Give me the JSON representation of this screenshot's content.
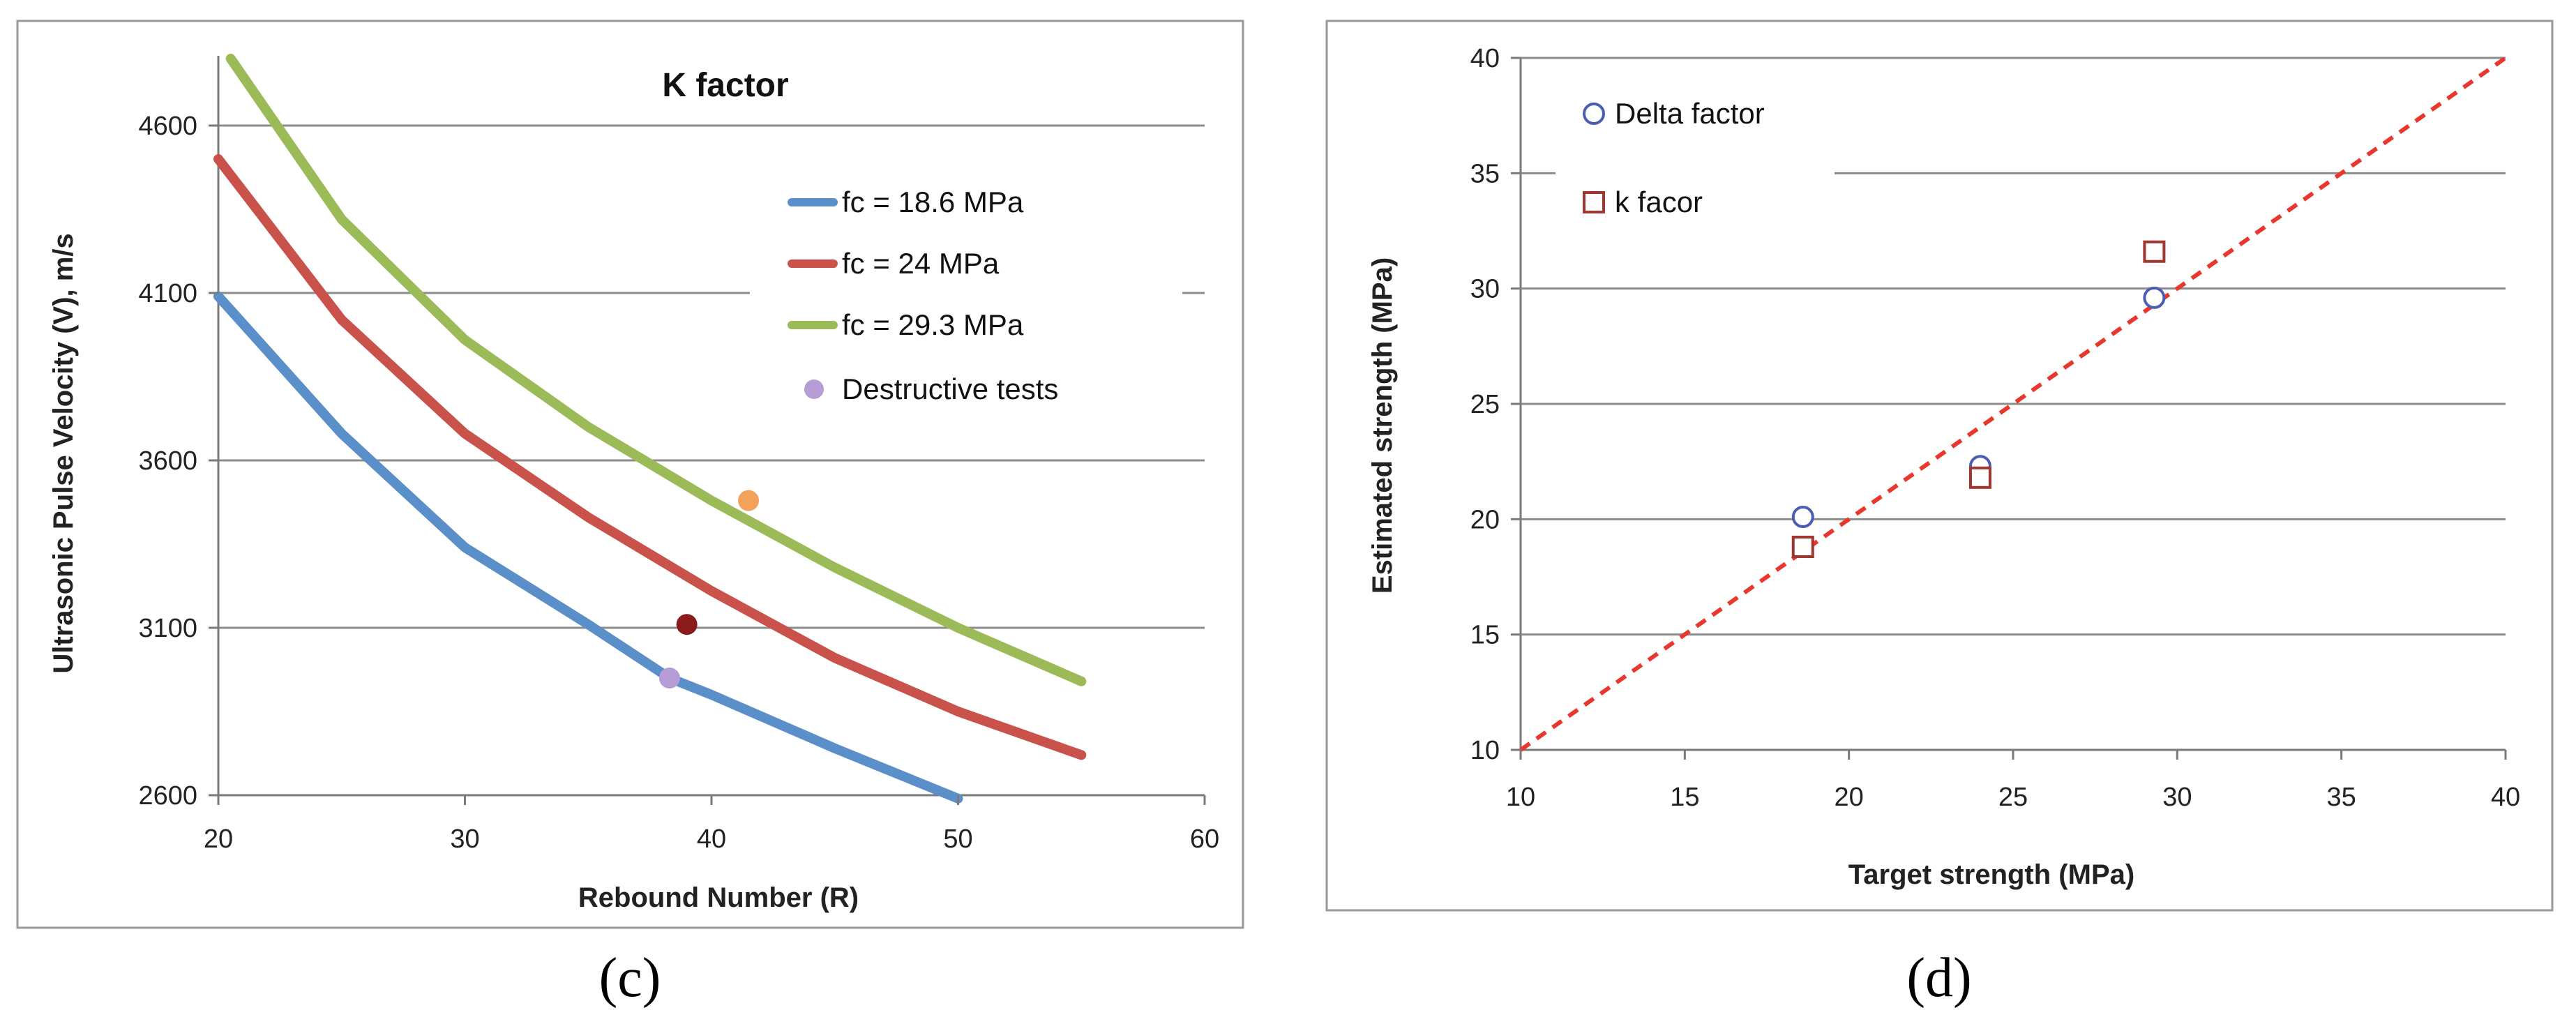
{
  "chart_data": [
    {
      "type": "line",
      "title": "K factor",
      "xlabel": "Rebound Number (R)",
      "ylabel": "Ultrasonic Pulse Velocity (V), m/s",
      "xlim": [
        20,
        60
      ],
      "ylim": [
        2600,
        4800
      ],
      "xticks": [
        "20",
        "30",
        "40",
        "50",
        "60"
      ],
      "yticks": [
        "2600",
        "3100",
        "3600",
        "4100",
        "4600"
      ],
      "grid": "horizontal",
      "legend_position": "right",
      "panel_label": "(c)",
      "series": [
        {
          "name": "fc = 18.6 MPa",
          "color": "#5B8FC9",
          "x": [
            20,
            25,
            30,
            35,
            38.3,
            40,
            45,
            50
          ],
          "y": [
            4090,
            3680,
            3340,
            3110,
            2950,
            2900,
            2740,
            2590
          ]
        },
        {
          "name": "fc = 24 MPa",
          "color": "#C9524A",
          "x": [
            20,
            25,
            30,
            35,
            40,
            45,
            50,
            55
          ],
          "y": [
            4500,
            4020,
            3680,
            3430,
            3210,
            3010,
            2850,
            2720
          ]
        },
        {
          "name": "fc = 29.3 MPa",
          "color": "#9BBB59",
          "x": [
            20.5,
            25,
            30,
            35,
            40,
            45,
            50,
            55
          ],
          "y": [
            4800,
            4320,
            3960,
            3700,
            3480,
            3280,
            3100,
            2940
          ]
        }
      ],
      "points": [
        {
          "name": "Destructive tests",
          "color": "#B79CD6",
          "x": 38.3,
          "y": 2950,
          "in_legend": true
        },
        {
          "name": "test-point-2",
          "color": "#8B1A1A",
          "x": 39,
          "y": 3110,
          "in_legend": false
        },
        {
          "name": "test-point-3",
          "color": "#F4A15B",
          "x": 41.5,
          "y": 3480,
          "in_legend": false
        }
      ]
    },
    {
      "type": "scatter",
      "title": "",
      "xlabel": "Target strength (MPa)",
      "ylabel": "Estimated strength (MPa)",
      "xlim": [
        10,
        40
      ],
      "ylim": [
        10,
        40
      ],
      "xticks": [
        "10",
        "15",
        "20",
        "25",
        "30",
        "35",
        "40"
      ],
      "yticks": [
        "10",
        "15",
        "20",
        "25",
        "30",
        "35",
        "40"
      ],
      "grid": "horizontal",
      "legend_position": "top-left",
      "panel_label": "(d)",
      "series": [
        {
          "name": "Delta factor",
          "marker": "circle",
          "color": "#4A5EB5",
          "x": [
            18.6,
            24,
            29.3
          ],
          "y": [
            20.1,
            22.3,
            29.6
          ]
        },
        {
          "name": "k facor",
          "marker": "square",
          "color": "#A0362F",
          "x": [
            18.6,
            24,
            29.3
          ],
          "y": [
            18.8,
            21.8,
            31.6
          ]
        }
      ],
      "reference_line": {
        "x": [
          10,
          40
        ],
        "y": [
          10,
          40
        ],
        "color": "#E8372D",
        "style": "dashed"
      }
    }
  ]
}
